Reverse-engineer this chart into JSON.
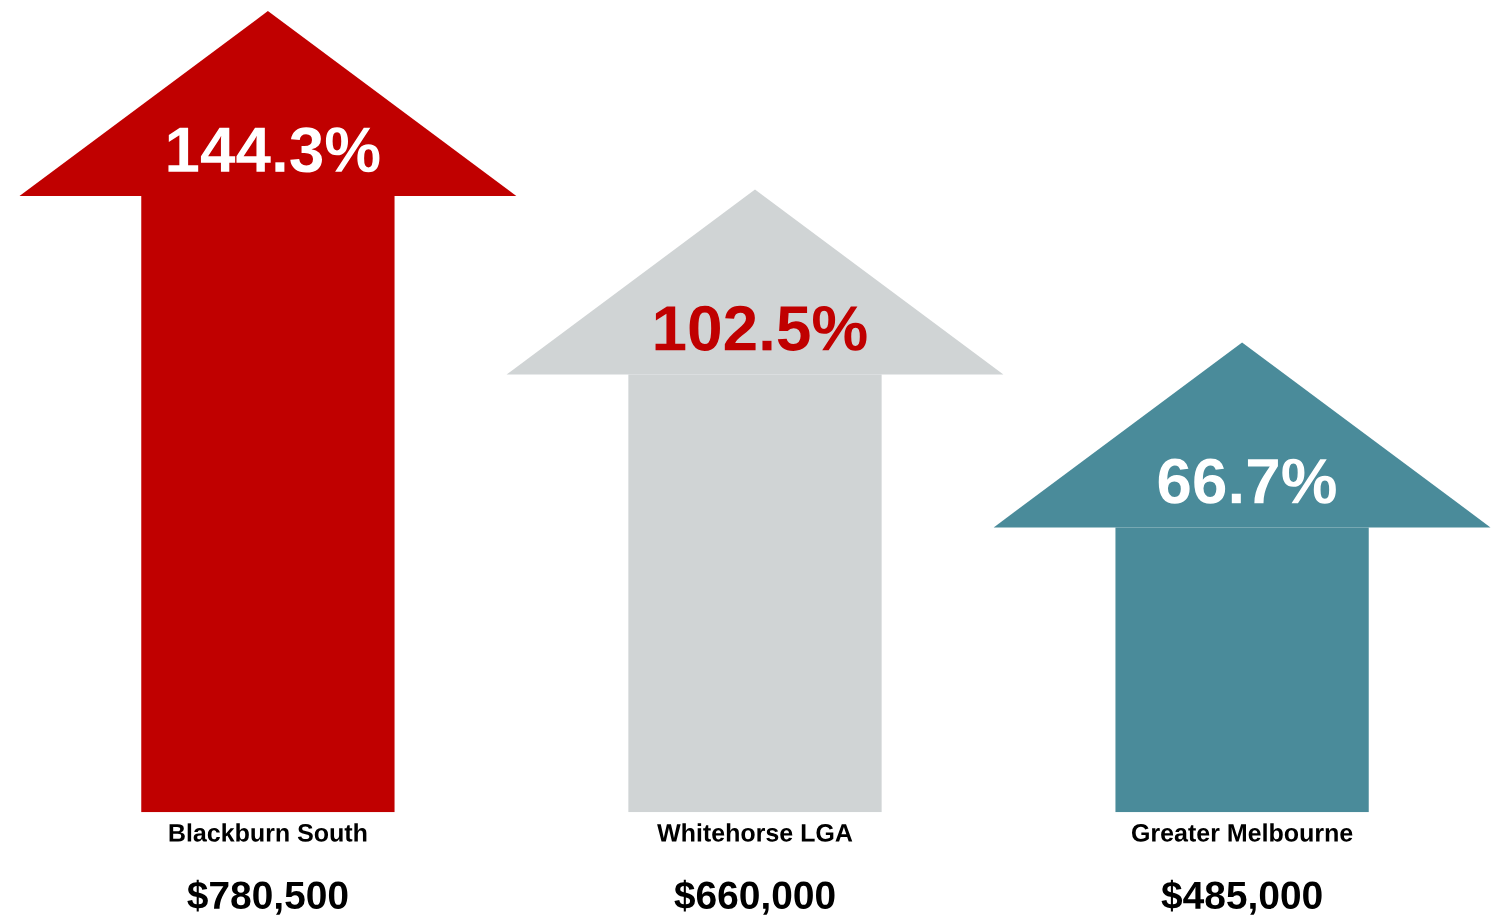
{
  "chart_data": {
    "type": "bar",
    "categories": [
      "Blackburn South",
      "Whitehorse LGA",
      "Greater Melbourne"
    ],
    "values": [
      144.3,
      102.5,
      66.7
    ],
    "colors": [
      "#c00000",
      "#d0d4d5",
      "#4a8b9a"
    ],
    "value_labels": [
      "144.3%",
      "102.5%",
      "66.7%"
    ],
    "annotations": [
      "$780,500",
      "$660,000",
      "$485,000"
    ]
  }
}
